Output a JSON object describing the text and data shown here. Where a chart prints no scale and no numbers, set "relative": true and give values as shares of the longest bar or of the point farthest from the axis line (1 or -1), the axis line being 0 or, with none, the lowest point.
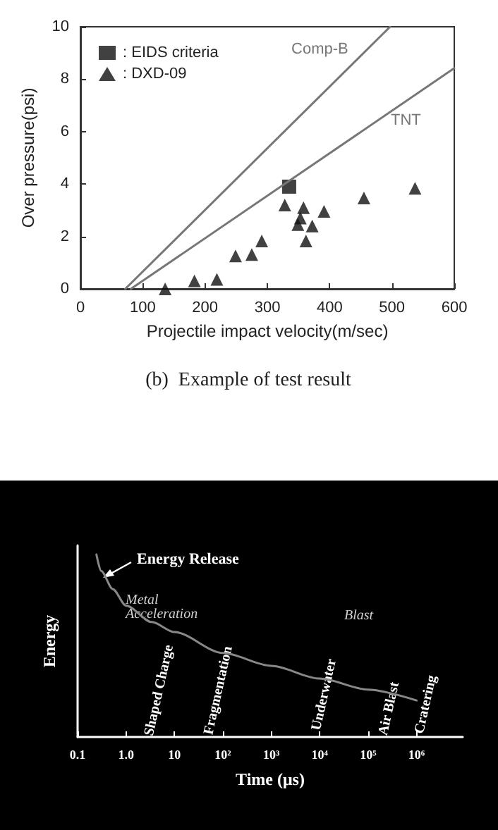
{
  "chart_data": [
    {
      "type": "scatter",
      "xlabel": "Projectile impact velocity(m/sec)",
      "ylabel": "Over pressure(psi)",
      "xlim": [
        0,
        600
      ],
      "xticks": [
        0,
        100,
        200,
        300,
        400,
        500,
        600
      ],
      "ylim": [
        0,
        10
      ],
      "yticks": [
        0,
        2,
        4,
        6,
        8,
        10
      ],
      "grid": false,
      "legend": "top left",
      "annotations": [
        "(b)  Example of test result"
      ],
      "series": [
        {
          "name": ": EIDS criteria",
          "marker": "square",
          "color": "#111111",
          "x": [
            335
          ],
          "values": [
            3.9
          ]
        },
        {
          "name": ": DXD-09",
          "marker": "triangle",
          "color": "#111111",
          "x": [
            136,
            183,
            219,
            249,
            275,
            291,
            328,
            358,
            353,
            349,
            372,
            362,
            391,
            455,
            537
          ],
          "values": [
            0,
            0.3,
            0.36,
            1.26,
            1.31,
            1.83,
            3.2,
            3.1,
            2.7,
            2.45,
            2.4,
            1.83,
            2.96,
            3.47,
            3.84
          ]
        },
        {
          "name": "Comp-B",
          "type": "line",
          "marker": "none",
          "color": "#777777",
          "x": [
            72,
            497
          ],
          "values": [
            0,
            10
          ]
        },
        {
          "name": "TNT",
          "type": "line",
          "marker": "none",
          "color": "#777777",
          "x": [
            81,
            600
          ],
          "values": [
            0,
            8.42
          ]
        }
      ]
    },
    {
      "type": "line",
      "xlabel": "Time (μs)",
      "ylabel": "Energy",
      "relative": true,
      "log": "x",
      "xlim": [
        0.1,
        9000000
      ],
      "xticks": [
        0.1,
        {
          "value": 1,
          "label": "1.0"
        },
        10,
        {
          "value": 100,
          "label": "10²"
        },
        {
          "value": 1000,
          "label": "10³"
        },
        {
          "value": 10000,
          "label": "10⁴"
        },
        {
          "value": 100000,
          "label": "10⁵"
        },
        {
          "value": 1000000,
          "label": "10⁶"
        }
      ],
      "grid": false,
      "legend": false,
      "marker": "none",
      "annotations": [
        "Energy Release",
        "Metal Acceleration",
        "Blast",
        "Shaped Charge",
        "Fragmentation",
        "Underwater",
        "Air Blast",
        "Cratering"
      ],
      "series": [
        {
          "color": "#888888",
          "x": [
            0.245,
            0.306,
            0.534,
            1,
            3.4,
            10,
            100,
            1000,
            10000,
            100000,
            1000000
          ],
          "values": [
            1,
            0.91,
            0.81,
            0.72,
            0.63,
            0.575,
            0.46,
            0.39,
            0.32,
            0.26,
            0.2
          ]
        }
      ]
    }
  ]
}
